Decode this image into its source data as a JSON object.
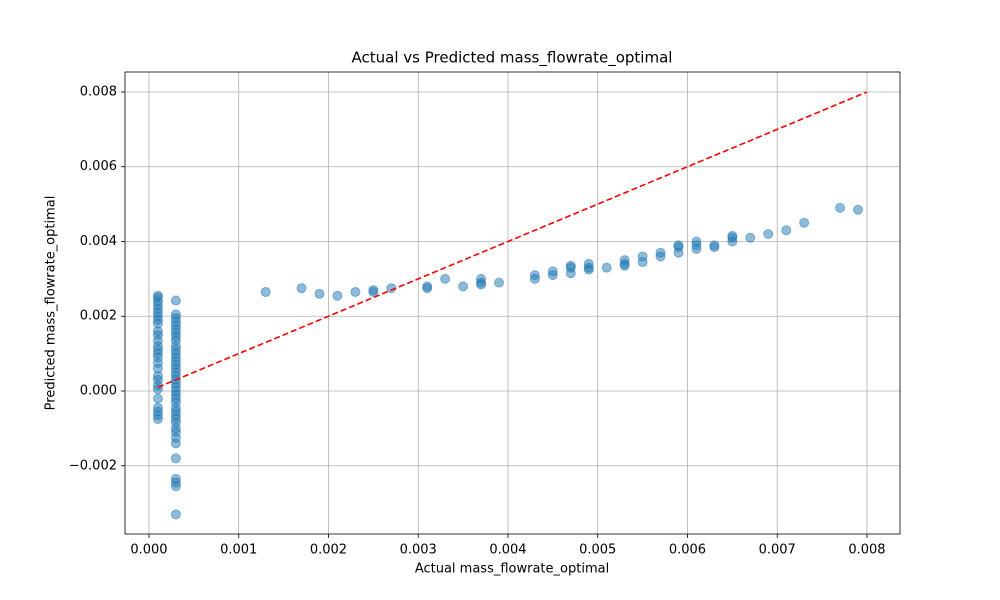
{
  "chart_data": {
    "type": "scatter",
    "title": "Actual vs Predicted mass_flowrate_optimal",
    "x_label": "Actual mass_flowrate_optimal",
    "y_label": "Predicted mass_flowrate_optimal",
    "xlim": [
      -0.000267,
      0.008368
    ],
    "ylim": [
      -0.003826,
      0.008535
    ],
    "xticks": [
      {
        "value": 0,
        "label": "0.000"
      },
      {
        "value": 0.001,
        "label": "0.001"
      },
      {
        "value": 0.002,
        "label": "0.002"
      },
      {
        "value": 0.003,
        "label": "0.003"
      },
      {
        "value": 0.004,
        "label": "0.004"
      },
      {
        "value": 0.005,
        "label": "0.005"
      },
      {
        "value": 0.006,
        "label": "0.006"
      },
      {
        "value": 0.007,
        "label": "0.007"
      },
      {
        "value": 0.008,
        "label": "0.008"
      }
    ],
    "yticks": [
      {
        "value": -0.002,
        "label": "−0.002"
      },
      {
        "value": 0,
        "label": "0.000"
      },
      {
        "value": 0.002,
        "label": "0.002"
      },
      {
        "value": 0.004,
        "label": "0.004"
      },
      {
        "value": 0.006,
        "label": "0.006"
      },
      {
        "value": 0.008,
        "label": "0.008"
      }
    ],
    "grid": true,
    "series": [
      {
        "color": "#1f77b4",
        "x": [
          0.0001,
          0.0001,
          0.0001,
          0.0001,
          0.0001,
          0.0001,
          0.0001,
          0.0001,
          0.0001,
          0.0001,
          0.0001,
          0.0001,
          0.0001,
          0.0001,
          0.0001,
          0.0001,
          0.0001,
          0.0001,
          0.0001,
          0.0001,
          0.0001,
          0.0001,
          0.0001,
          0.0001,
          0.0001,
          0.0001,
          0.0001,
          0.0003,
          0.0003,
          0.0003,
          0.0003,
          0.0003,
          0.0003,
          0.0003,
          0.0003,
          0.0003,
          0.0003,
          0.0003,
          0.0003,
          0.0003,
          0.0003,
          0.0003,
          0.0003,
          0.0003,
          0.0003,
          0.0003,
          0.0003,
          0.0003,
          0.0003,
          0.0003,
          0.0003,
          0.0003,
          0.0003,
          0.0003,
          0.0003,
          0.0003,
          0.0003,
          0.0003,
          0.0003,
          0.0003,
          0.0003,
          0.0003,
          0.0003,
          0.0003,
          0.0003,
          0.0003,
          0.0013,
          0.0017,
          0.0019,
          0.0021,
          0.0023,
          0.0025,
          0.0025,
          0.0027,
          0.0031,
          0.0031,
          0.0033,
          0.0035,
          0.0037,
          0.0037,
          0.0037,
          0.0039,
          0.0043,
          0.0043,
          0.0045,
          0.0045,
          0.0047,
          0.0047,
          0.0047,
          0.0049,
          0.0049,
          0.0049,
          0.0051,
          0.0053,
          0.0053,
          0.0053,
          0.0055,
          0.0055,
          0.0057,
          0.0057,
          0.0059,
          0.0059,
          0.0059,
          0.0061,
          0.0061,
          0.0061,
          0.0063,
          0.0063,
          0.0065,
          0.0065,
          0.0065,
          0.0067,
          0.0069,
          0.0071,
          0.0073,
          0.0077,
          0.0079
        ],
        "values": [
          0.00255,
          0.0025,
          0.0024,
          0.0023,
          0.0022,
          0.0021,
          0.002,
          0.0019,
          0.0018,
          0.0016,
          0.0015,
          0.00135,
          0.0012,
          0.0011,
          0.001,
          0.0009,
          0.00075,
          0.0006,
          0.0004,
          0.0003,
          0.00015,
          5e-05,
          -0.0002,
          -0.00045,
          -0.00055,
          -0.00065,
          -0.00075,
          0.00242,
          0.00205,
          0.00195,
          0.00185,
          0.00175,
          0.00165,
          0.00155,
          0.00145,
          0.00135,
          0.0012,
          0.0011,
          0.001,
          0.0009,
          0.0008,
          0.0007,
          0.0006,
          0.0005,
          0.0004,
          0.0003,
          0.0002,
          0.0001,
          0,
          -0.0001,
          -0.0002,
          -0.0003,
          -0.00045,
          -0.00055,
          -0.00065,
          -0.00075,
          -0.00085,
          -0.001,
          -0.0011,
          -0.00125,
          -0.0014,
          -0.0018,
          -0.00235,
          -0.00245,
          -0.00255,
          -0.0033,
          0.00265,
          0.00275,
          0.0026,
          0.00255,
          0.00265,
          0.00265,
          0.0027,
          0.00275,
          0.0028,
          0.00275,
          0.003,
          0.0028,
          0.003,
          0.0029,
          0.00285,
          0.0029,
          0.0031,
          0.003,
          0.0032,
          0.0031,
          0.00335,
          0.0033,
          0.00315,
          0.0034,
          0.0033,
          0.00325,
          0.0033,
          0.0035,
          0.0034,
          0.00335,
          0.0036,
          0.00345,
          0.0037,
          0.0036,
          0.0039,
          0.00385,
          0.0037,
          0.004,
          0.0039,
          0.0038,
          0.0039,
          0.00385,
          0.00415,
          0.0041,
          0.004,
          0.0041,
          0.0042,
          0.0043,
          0.0045,
          0.0049,
          0.00485
        ]
      }
    ],
    "reference_line": {
      "x": [
        0.0001,
        0.008
      ],
      "values": [
        0.0001,
        0.008
      ],
      "color": "#ff0000"
    }
  }
}
